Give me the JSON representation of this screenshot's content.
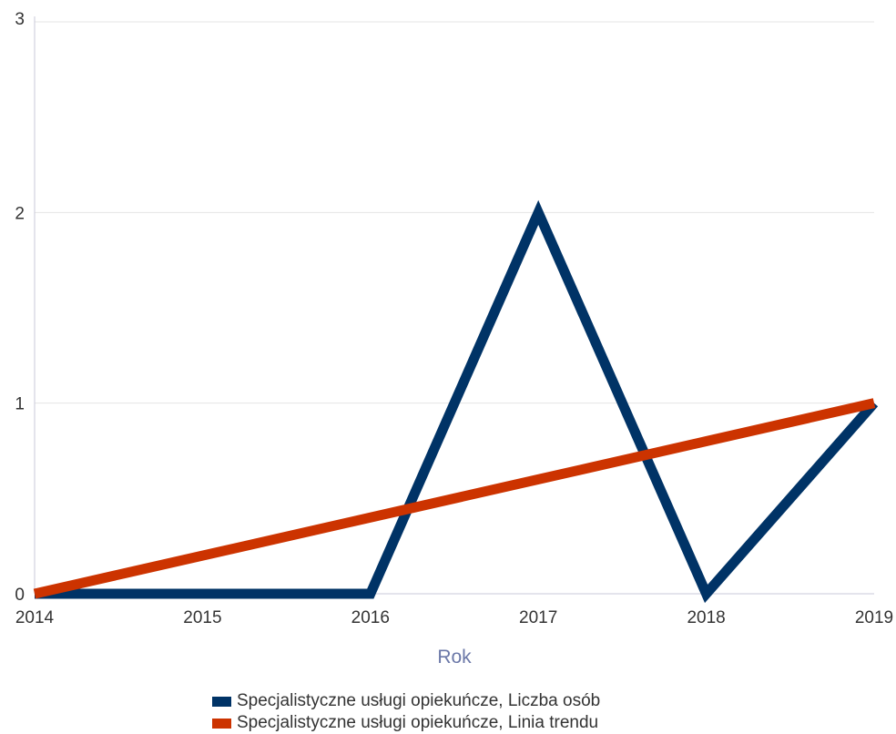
{
  "chart_data": {
    "type": "line",
    "x": [
      2014,
      2015,
      2016,
      2017,
      2018,
      2019
    ],
    "xlabel": "Rok",
    "ylabel": "",
    "xlim": [
      2014,
      2019
    ],
    "ylim": [
      0,
      3
    ],
    "yticks": [
      0,
      1,
      2,
      3
    ],
    "grid": true,
    "legend_position": "bottom",
    "series": [
      {
        "name": "Specjalistyczne usługi opiekuńcze, Liczba osób",
        "color": "#003366",
        "values": [
          0,
          0,
          0,
          2,
          0,
          1
        ]
      },
      {
        "name": "Specjalistyczne usługi opiekuńcze, Linia trendu",
        "color": "#cc3300",
        "values": [
          0,
          0.2,
          0.4,
          0.6,
          0.8,
          1
        ]
      }
    ]
  }
}
